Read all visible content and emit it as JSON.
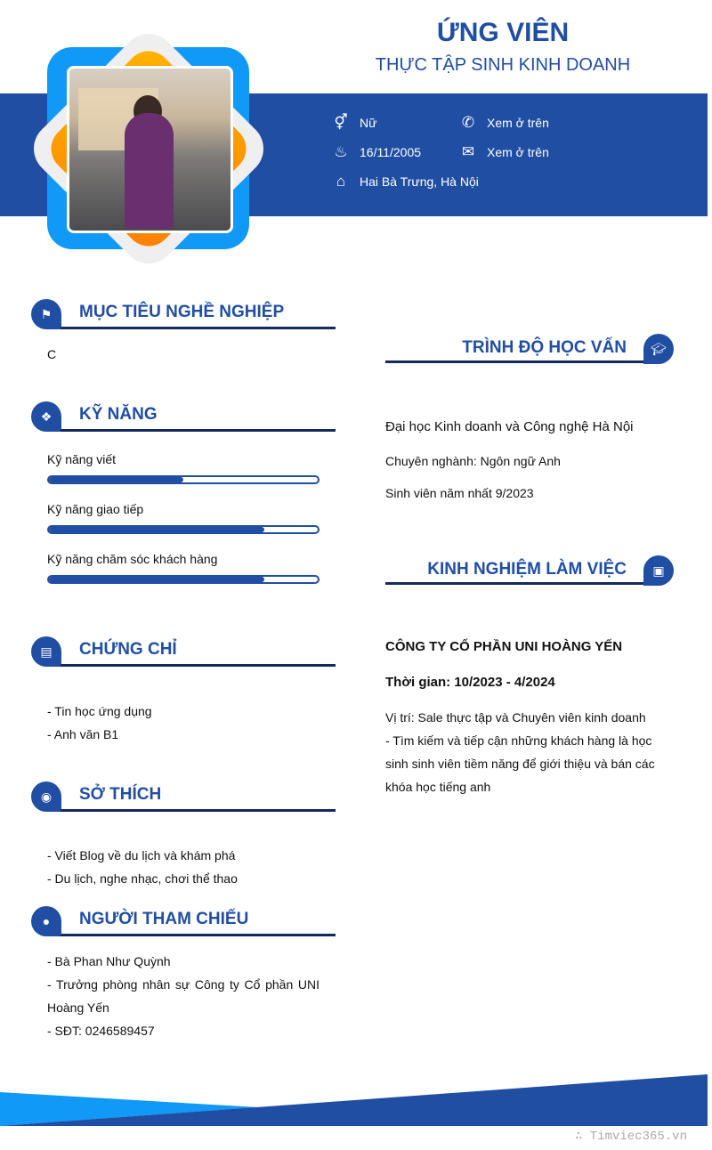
{
  "header": {
    "name": "ỨNG VIÊN",
    "job_title": "THỰC TẬP SINH KINH DOANH",
    "info": [
      {
        "icon": "gender-icon",
        "value": "Nữ"
      },
      {
        "icon": "whatsapp-icon",
        "value": "Xem ở trên"
      },
      {
        "icon": "birthday-cake-icon",
        "value": "16/11/2005"
      },
      {
        "icon": "envelope-icon",
        "value": "Xem ở trên"
      },
      {
        "icon": "home-icon",
        "value": "Hai Bà Trưng, Hà Nội"
      }
    ]
  },
  "objective": {
    "title": "MỤC TIÊU NGHỀ NGHIỆP",
    "text": "C"
  },
  "skills": {
    "title": "KỸ NĂNG",
    "items": [
      {
        "name": "Kỹ năng viết",
        "level": 50
      },
      {
        "name": "Kỹ năng giao tiếp",
        "level": 80
      },
      {
        "name": "Kỹ năng chăm sóc khách hàng",
        "level": 80
      }
    ]
  },
  "certificates": {
    "title": "CHỨNG CHỈ",
    "items": [
      "- Tin học ứng dụng",
      "- Anh văn B1"
    ]
  },
  "hobbies": {
    "title": "SỞ THÍCH",
    "items": [
      "- Viết Blog về du lịch và khám phá",
      "- Du lịch, nghe nhạc, chơi thể thao"
    ]
  },
  "references": {
    "title": "NGƯỜI THAM CHIẾU",
    "items": [
      "- Bà Phan Như Quỳnh",
      "- Trưởng phòng nhân sự Công ty Cổ phần UNI Hoàng Yến",
      "- SĐT: 0246589457"
    ]
  },
  "education": {
    "title": "TRÌNH ĐỘ HỌC VẤN",
    "school": "Đại học Kinh doanh và Công nghệ Hà Nội",
    "major": "Chuyên nghành: Ngôn ngữ Anh",
    "note": "Sinh viên năm nhất 9/2023"
  },
  "experience": {
    "title": "KINH NGHIỆM LÀM VIỆC",
    "company": "CÔNG TY CỔ PHẦN UNI HOÀNG YẾN",
    "time": "Thời gian: 10/2023 - 4/2024",
    "position": "Vị trí: Sale thực tập và Chuyên viên kinh doanh",
    "description": "- Tìm kiếm và tiếp cận những khách hàng là học sinh sinh viên tiềm năng để giới thiệu và bán các khóa học tiếng anh"
  },
  "watermark": "∴ Timviec365.vn",
  "colors": {
    "primary": "#204ea3",
    "accent_blue": "#1199f7",
    "accent_orange": "#ff8c00",
    "line": "#14295f"
  }
}
